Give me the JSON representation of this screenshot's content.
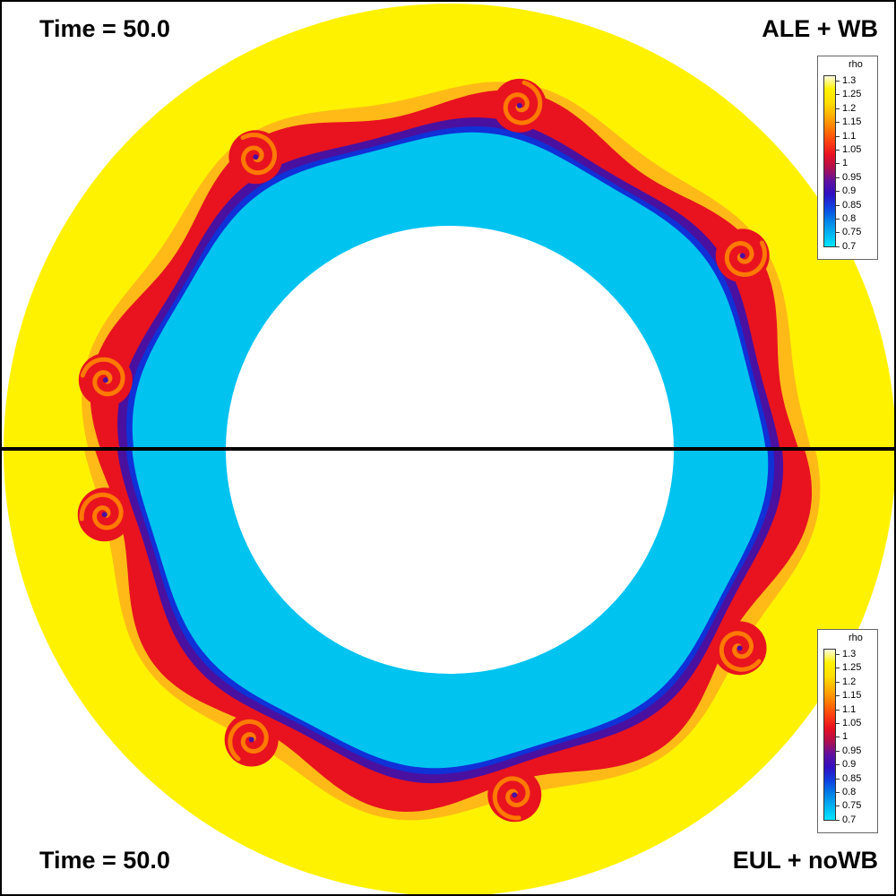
{
  "panels": {
    "top": {
      "time_label": "Time = 50.0",
      "method_label": "ALE + WB"
    },
    "bottom": {
      "time_label": "Time = 50.0",
      "method_label": "EUL + noWB"
    }
  },
  "colorbar": {
    "title": "rho",
    "ticks": [
      "1.3",
      "1.25",
      "1.2",
      "1.15",
      "1.1",
      "1.05",
      "1",
      "0.95",
      "0.9",
      "0.85",
      "0.8",
      "0.75",
      "0.7"
    ]
  },
  "colors": {
    "outer_fluid": "#fff200",
    "inner_fluid": "#00c3f0",
    "vortex_red": "#e8131f",
    "vortex_orange": "#ff7a00",
    "interface_blue": "#1030d8",
    "interface_purple": "#4a10a0",
    "colormap": [
      "#00e6ff",
      "#00b4f0",
      "#0080e6",
      "#1040e0",
      "#3010c0",
      "#6010a0",
      "#b01050",
      "#e81020",
      "#ff4010",
      "#ff7a00",
      "#ffb000",
      "#ffe000",
      "#fff200",
      "#fffbe0"
    ]
  }
}
